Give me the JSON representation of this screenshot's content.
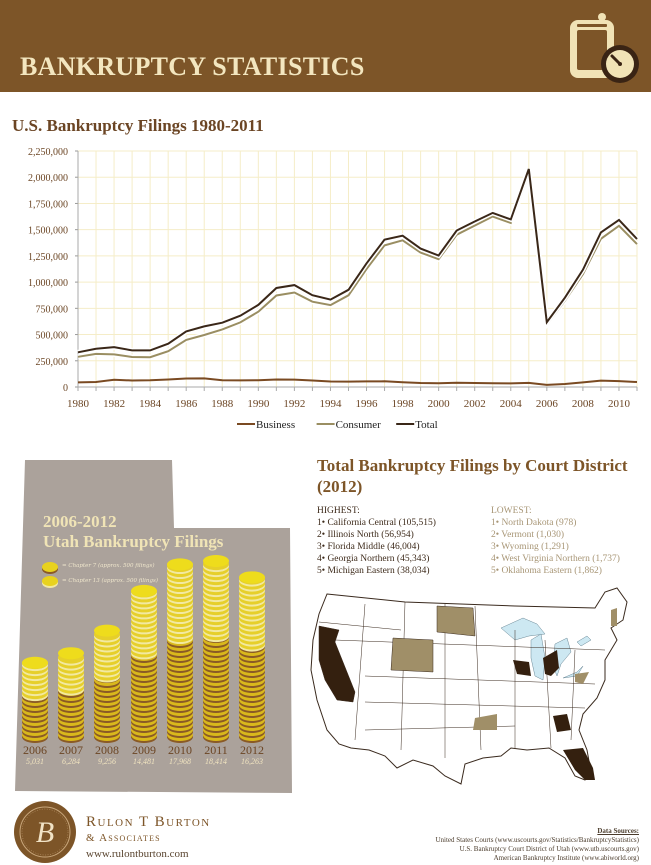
{
  "header": {
    "title": "BANKRUPTCY STATISTICS",
    "icon": "clipboard-clock-icon",
    "bg_color": "#7d5528",
    "text_color": "#f3e6bf"
  },
  "line_chart": {
    "title": "U.S. Bankruptcy Filings 1980-2011",
    "y_ticks": [
      "2,250,000",
      "2,000,000",
      "1,750,000",
      "1,500,000",
      "1,250,000",
      "1,000,000",
      "750,000",
      "500,000",
      "250,000",
      "0"
    ],
    "x_ticks": [
      "1980",
      "1982",
      "1984",
      "1986",
      "1988",
      "1990",
      "1992",
      "1994",
      "1996",
      "1998",
      "2000",
      "2002",
      "2004",
      "2006",
      "2008",
      "2010"
    ],
    "legend": [
      {
        "label": "Business",
        "color": "#7a4a22"
      },
      {
        "label": "Consumer",
        "color": "#9a8e62"
      },
      {
        "label": "Total",
        "color": "#3a2718"
      }
    ]
  },
  "chart_data": [
    {
      "type": "line",
      "title": "U.S. Bankruptcy Filings 1980-2011",
      "xlabel": "",
      "ylabel": "",
      "ylim": [
        0,
        2250000
      ],
      "grid": true,
      "legend_position": "bottom",
      "x": [
        1980,
        1981,
        1982,
        1983,
        1984,
        1985,
        1986,
        1987,
        1988,
        1989,
        1990,
        1991,
        1992,
        1993,
        1994,
        1995,
        1996,
        1997,
        1998,
        1999,
        2000,
        2001,
        2002,
        2003,
        2004,
        2005,
        2006,
        2007,
        2008,
        2009,
        2010,
        2011
      ],
      "series": [
        {
          "name": "Business",
          "values": [
            43694,
            48125,
            69300,
            62436,
            64004,
            71277,
            81235,
            82446,
            63853,
            63235,
            64853,
            71549,
            70643,
            62304,
            52374,
            51959,
            53549,
            54027,
            44367,
            37884,
            35472,
            40099,
            38540,
            35037,
            34317,
            39201,
            19695,
            28322,
            43546,
            60837,
            56282,
            47806
          ]
        },
        {
          "name": "Consumer",
          "values": [
            287570,
            315818,
            310951,
            286444,
            284517,
            341233,
            449203,
            495553,
            549612,
            616226,
            718107,
            872438,
            900874,
            812898,
            780455,
            874642,
            1125006,
            1350118,
            1398182,
            1281581,
            1217972,
            1452030,
            1539111,
            1625208,
            1563145,
            2039214,
            597965,
            822590,
            1074225,
            1412838,
            1536799,
            1362847
          ]
        },
        {
          "name": "Total",
          "values": [
            331264,
            363943,
            380251,
            348880,
            348521,
            412510,
            530438,
            577999,
            613465,
            679461,
            782960,
            943987,
            971517,
            875202,
            832829,
            926601,
            1178555,
            1404145,
            1442549,
            1319465,
            1253444,
            1492129,
            1577651,
            1660245,
            1597462,
            2078415,
            617660,
            850912,
            1117771,
            1473675,
            1593081,
            1410653
          ]
        }
      ]
    },
    {
      "type": "bar",
      "title": "2006-2012 Utah Bankruptcy Filings",
      "categories": [
        "2006",
        "2007",
        "2008",
        "2009",
        "2010",
        "2011",
        "2012"
      ],
      "values": [
        5031,
        6284,
        9256,
        14481,
        17968,
        18414,
        16263
      ]
    },
    {
      "type": "table",
      "title": "Total Bankruptcy Filings by Court District (2012)",
      "highest": [
        [
          "California Central",
          105515
        ],
        [
          "Illinois North",
          56954
        ],
        [
          "Florida Middle",
          46004
        ],
        [
          "Georgia Northern",
          45343
        ],
        [
          "Michigan Eastern",
          38034
        ]
      ],
      "lowest": [
        [
          "North Dakota",
          978
        ],
        [
          "Vermont",
          1030
        ],
        [
          "Wyoming",
          1291
        ],
        [
          "West Virginia Northern",
          1737
        ],
        [
          "Oklahoma Eastern",
          1862
        ]
      ]
    }
  ],
  "utah": {
    "title_line1": "2006-2012",
    "title_line2": "Utah Bankruptcy Filings",
    "legend_ch7": "= Chapter 7 (approx. 500 filings)",
    "legend_ch13": "= Chapter 13 (approx. 500 filings)",
    "years": [
      {
        "year": "2006",
        "value": "5,031"
      },
      {
        "year": "2007",
        "value": "6,284"
      },
      {
        "year": "2008",
        "value": "9,256"
      },
      {
        "year": "2009",
        "value": "14,481"
      },
      {
        "year": "2010",
        "value": "17,968"
      },
      {
        "year": "2011",
        "value": "18,414"
      },
      {
        "year": "2012",
        "value": "16,263"
      }
    ]
  },
  "court": {
    "title": "Total Bankruptcy Filings by Court District (2012)",
    "highest_label": "HIGHEST:",
    "lowest_label": "LOWEST:",
    "highest": [
      "1• California Central (105,515)",
      "2• Illinois North (56,954)",
      "3• Florida Middle (46,004)",
      "4• Georgia Northern (45,343)",
      "5• Michigan Eastern (38,034)"
    ],
    "lowest": [
      "1• North Dakota (978)",
      "2• Vermont (1,030)",
      "3• Wyoming (1,291)",
      "4• West Virginia Northern (1,737)",
      "5• Oklahoma Eastern (1,862)"
    ],
    "highest_color": "#34200f",
    "lowest_color": "#a08f68"
  },
  "footer": {
    "logo_letter": "B",
    "firm_name": "Rulon T Burton",
    "firm_sub": "& Associates",
    "url": "www.rulontburton.com",
    "sources_title": "Data Sources:",
    "sources": [
      "United States Courts (www.uscourts.gov/Statistics/BankruptcyStatistics)",
      "U.S. Bankruptcy Court District of Utah (www.utb.uscourts.gov)",
      "American Bankruptcy Institute (www.abiworld.org)"
    ]
  }
}
